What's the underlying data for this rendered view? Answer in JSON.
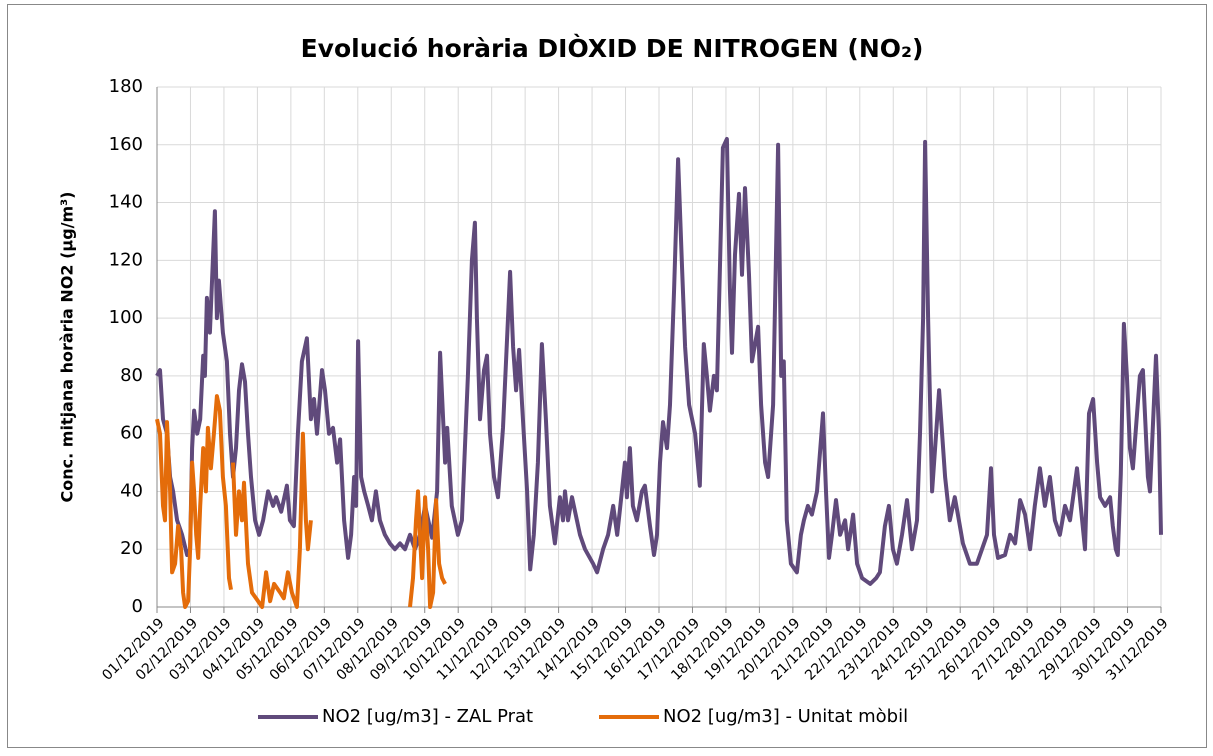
{
  "chart_data": {
    "type": "line",
    "title": "Evolució horària DIÒXID DE NITROGEN (NO₂)",
    "y_label": "Conc. mitjana horària NO2 (µg/m³)",
    "xlim": [
      0,
      30
    ],
    "ylim": [
      0,
      180
    ],
    "yticks": [
      0,
      20,
      40,
      60,
      80,
      100,
      120,
      140,
      160,
      180
    ],
    "xticks": [
      {
        "value": 0,
        "label": "01/12/2019"
      },
      {
        "value": 1,
        "label": "02/12/2019"
      },
      {
        "value": 2,
        "label": "03/12/2019"
      },
      {
        "value": 3,
        "label": "04/12/2019"
      },
      {
        "value": 4,
        "label": "05/12/2019"
      },
      {
        "value": 5,
        "label": "06/12/2019"
      },
      {
        "value": 6,
        "label": "07/12/2019"
      },
      {
        "value": 7,
        "label": "08/12/2019"
      },
      {
        "value": 8,
        "label": "09/12/2019"
      },
      {
        "value": 9,
        "label": "10/12/2019"
      },
      {
        "value": 10,
        "label": "11/12/2019"
      },
      {
        "value": 11,
        "label": "12/12/2019"
      },
      {
        "value": 12,
        "label": "13/12/2019"
      },
      {
        "value": 13,
        "label": "14/12/2019"
      },
      {
        "value": 14,
        "label": "15/12/2019"
      },
      {
        "value": 15,
        "label": "16/12/2019"
      },
      {
        "value": 16,
        "label": "17/12/2019"
      },
      {
        "value": 17,
        "label": "18/12/2019"
      },
      {
        "value": 18,
        "label": "19/12/2019"
      },
      {
        "value": 19,
        "label": "20/12/2019"
      },
      {
        "value": 20,
        "label": "21/12/2019"
      },
      {
        "value": 21,
        "label": "22/12/2019"
      },
      {
        "value": 22,
        "label": "23/12/2019"
      },
      {
        "value": 23,
        "label": "24/12/2019"
      },
      {
        "value": 24,
        "label": "25/12/2019"
      },
      {
        "value": 25,
        "label": "26/12/2019"
      },
      {
        "value": 26,
        "label": "27/12/2019"
      },
      {
        "value": 27,
        "label": "28/12/2019"
      },
      {
        "value": 28,
        "label": "29/12/2019"
      },
      {
        "value": 29,
        "label": "30/12/2019"
      },
      {
        "value": 30,
        "label": "31/12/2019"
      }
    ],
    "grid": true,
    "legend": "bottom",
    "series": [
      {
        "name": "NO2 [ug/m3] - ZAL Prat",
        "color": "#604a7b",
        "x": [
          0,
          0.09,
          0.18,
          0.3,
          0.39,
          0.48,
          0.6,
          0.75,
          0.9,
          0.99,
          1.05,
          1.11,
          1.2,
          1.29,
          1.38,
          1.43,
          1.49,
          1.58,
          1.73,
          1.79,
          1.85,
          1.97,
          2.09,
          2.18,
          2.27,
          2.36,
          2.45,
          2.54,
          2.63,
          2.72,
          2.81,
          2.93,
          3.05,
          3.17,
          3.32,
          3.47,
          3.56,
          3.71,
          3.88,
          3.97,
          4.09,
          4.21,
          4.33,
          4.48,
          4.6,
          4.69,
          4.78,
          4.93,
          5.02,
          5.14,
          5.26,
          5.38,
          5.47,
          5.59,
          5.71,
          5.8,
          5.89,
          5.95,
          6.01,
          6.1,
          6.19,
          6.31,
          6.42,
          6.54,
          6.66,
          6.81,
          6.96,
          7.11,
          7.26,
          7.41,
          7.56,
          7.71,
          7.86,
          8.01,
          8.22,
          8.37,
          8.46,
          8.61,
          8.67,
          8.81,
          8.99,
          9.11,
          9.29,
          9.41,
          9.5,
          9.56,
          9.65,
          9.77,
          9.86,
          9.95,
          10.07,
          10.19,
          10.34,
          10.55,
          10.64,
          10.73,
          10.82,
          10.91,
          11.06,
          11.15,
          11.26,
          11.38,
          11.5,
          11.62,
          11.74,
          11.89,
          12.04,
          12.13,
          12.19,
          12.28,
          12.4,
          12.64,
          12.79,
          13.03,
          13.15,
          13.33,
          13.48,
          13.63,
          13.75,
          13.89,
          13.98,
          14.04,
          14.13,
          14.22,
          14.34,
          14.49,
          14.58,
          14.73,
          14.85,
          14.94,
          15.03,
          15.12,
          15.24,
          15.33,
          15.45,
          15.57,
          15.69,
          15.78,
          15.9,
          15.99,
          16.08,
          16.22,
          16.34,
          16.43,
          16.52,
          16.64,
          16.73,
          16.91,
          17.03,
          17.12,
          17.18,
          17.27,
          17.39,
          17.48,
          17.57,
          17.69,
          17.78,
          17.96,
          18.05,
          18.17,
          18.26,
          18.41,
          18.56,
          18.65,
          18.73,
          18.82,
          18.94,
          19.12,
          19.24,
          19.33,
          19.45,
          19.57,
          19.72,
          19.9,
          19.99,
          20.08,
          20.17,
          20.29,
          20.41,
          20.56,
          20.65,
          20.8,
          20.92,
          21.07,
          21.31,
          21.49,
          21.6,
          21.75,
          21.87,
          21.99,
          22.11,
          22.26,
          22.41,
          22.56,
          22.71,
          22.8,
          22.89,
          22.95,
          23.04,
          23.16,
          23.28,
          23.37,
          23.55,
          23.69,
          23.84,
          23.96,
          24.08,
          24.29,
          24.5,
          24.65,
          24.8,
          24.92,
          25.01,
          25.13,
          25.34,
          25.49,
          25.64,
          25.79,
          25.94,
          26.09,
          26.23,
          26.38,
          26.53,
          26.68,
          26.83,
          26.98,
          27.13,
          27.28,
          27.49,
          27.73,
          27.85,
          27.97,
          28.09,
          28.18,
          28.33,
          28.48,
          28.56,
          28.65,
          28.71,
          28.8,
          28.89,
          28.98,
          29.07,
          29.16,
          29.37,
          29.46,
          29.61,
          29.67,
          29.85,
          29.94,
          30.0
        ],
        "values": [
          80,
          82,
          65,
          60,
          45,
          40,
          30,
          25,
          18,
          20,
          55,
          68,
          60,
          65,
          87,
          80,
          107,
          95,
          137,
          100,
          113,
          95,
          85,
          60,
          45,
          55,
          75,
          84,
          78,
          60,
          45,
          30,
          25,
          30,
          40,
          35,
          38,
          33,
          42,
          30,
          28,
          60,
          85,
          93,
          65,
          72,
          60,
          82,
          75,
          60,
          62,
          50,
          58,
          30,
          17,
          25,
          45,
          35,
          92,
          45,
          40,
          35,
          30,
          40,
          30,
          25,
          22,
          20,
          22,
          20,
          25,
          20,
          25,
          35,
          24,
          40,
          88,
          50,
          62,
          35,
          25,
          30,
          80,
          120,
          133,
          100,
          65,
          82,
          87,
          60,
          45,
          38,
          62,
          116,
          90,
          75,
          89,
          70,
          40,
          13,
          25,
          50,
          91,
          65,
          35,
          22,
          38,
          30,
          40,
          30,
          38,
          25,
          20,
          15,
          12,
          20,
          25,
          35,
          25,
          40,
          50,
          38,
          55,
          35,
          30,
          40,
          42,
          28,
          18,
          25,
          50,
          64,
          55,
          70,
          110,
          155,
          117,
          90,
          70,
          65,
          60,
          42,
          91,
          80,
          68,
          80,
          75,
          159,
          162,
          110,
          88,
          122,
          143,
          115,
          145,
          115,
          85,
          97,
          70,
          50,
          45,
          70,
          160,
          80,
          85,
          30,
          15,
          12,
          25,
          30,
          35,
          32,
          40,
          67,
          40,
          17,
          25,
          37,
          25,
          30,
          20,
          32,
          15,
          10,
          8,
          10,
          12,
          28,
          35,
          20,
          15,
          25,
          37,
          20,
          30,
          60,
          100,
          161,
          100,
          40,
          60,
          75,
          45,
          30,
          38,
          30,
          22,
          15,
          15,
          20,
          25,
          48,
          25,
          17,
          18,
          25,
          22,
          37,
          32,
          20,
          35,
          48,
          35,
          45,
          30,
          25,
          35,
          30,
          48,
          20,
          67,
          72,
          50,
          38,
          35,
          38,
          28,
          20,
          18,
          46,
          98,
          80,
          55,
          48,
          80,
          82,
          45,
          40,
          87,
          60,
          25
        ]
      },
      {
        "name": "NO2 [ug/m3] - Unitat mòbil",
        "color": "#e46c0a",
        "x": [
          0,
          0.09,
          0.18,
          0.24,
          0.3,
          0.39,
          0.45,
          0.54,
          0.63,
          0.72,
          0.78,
          0.84,
          0.93,
          0.99,
          1.05,
          1.11,
          1.17,
          1.23,
          1.29,
          1.38,
          1.46,
          1.52,
          1.61,
          1.7,
          1.79,
          1.88,
          1.97,
          2.06,
          2.15,
          2.21,
          null,
          2.27,
          2.36,
          2.45,
          2.54,
          2.6,
          2.72,
          2.84,
          2.96,
          3.14,
          3.26,
          3.38,
          3.5,
          3.68,
          3.79,
          3.91,
          4.03,
          4.18,
          4.27,
          4.36,
          4.45,
          4.51,
          4.6,
          null,
          7.56,
          7.65,
          7.74,
          7.8,
          7.86,
          7.92,
          8.01,
          8.1,
          8.16,
          8.25,
          8.34,
          8.43,
          8.52,
          8.61
        ],
        "values": [
          65,
          60,
          35,
          30,
          64,
          40,
          12,
          15,
          28,
          20,
          5,
          0,
          2,
          20,
          50,
          40,
          25,
          17,
          35,
          55,
          40,
          62,
          48,
          60,
          73,
          68,
          45,
          35,
          10,
          6,
          null,
          50,
          25,
          40,
          30,
          43,
          15,
          5,
          3,
          0,
          12,
          2,
          8,
          5,
          3,
          12,
          5,
          0,
          20,
          60,
          30,
          20,
          30,
          null,
          0,
          10,
          30,
          40,
          25,
          10,
          38,
          20,
          0,
          5,
          37,
          15,
          10,
          8
        ]
      }
    ]
  }
}
